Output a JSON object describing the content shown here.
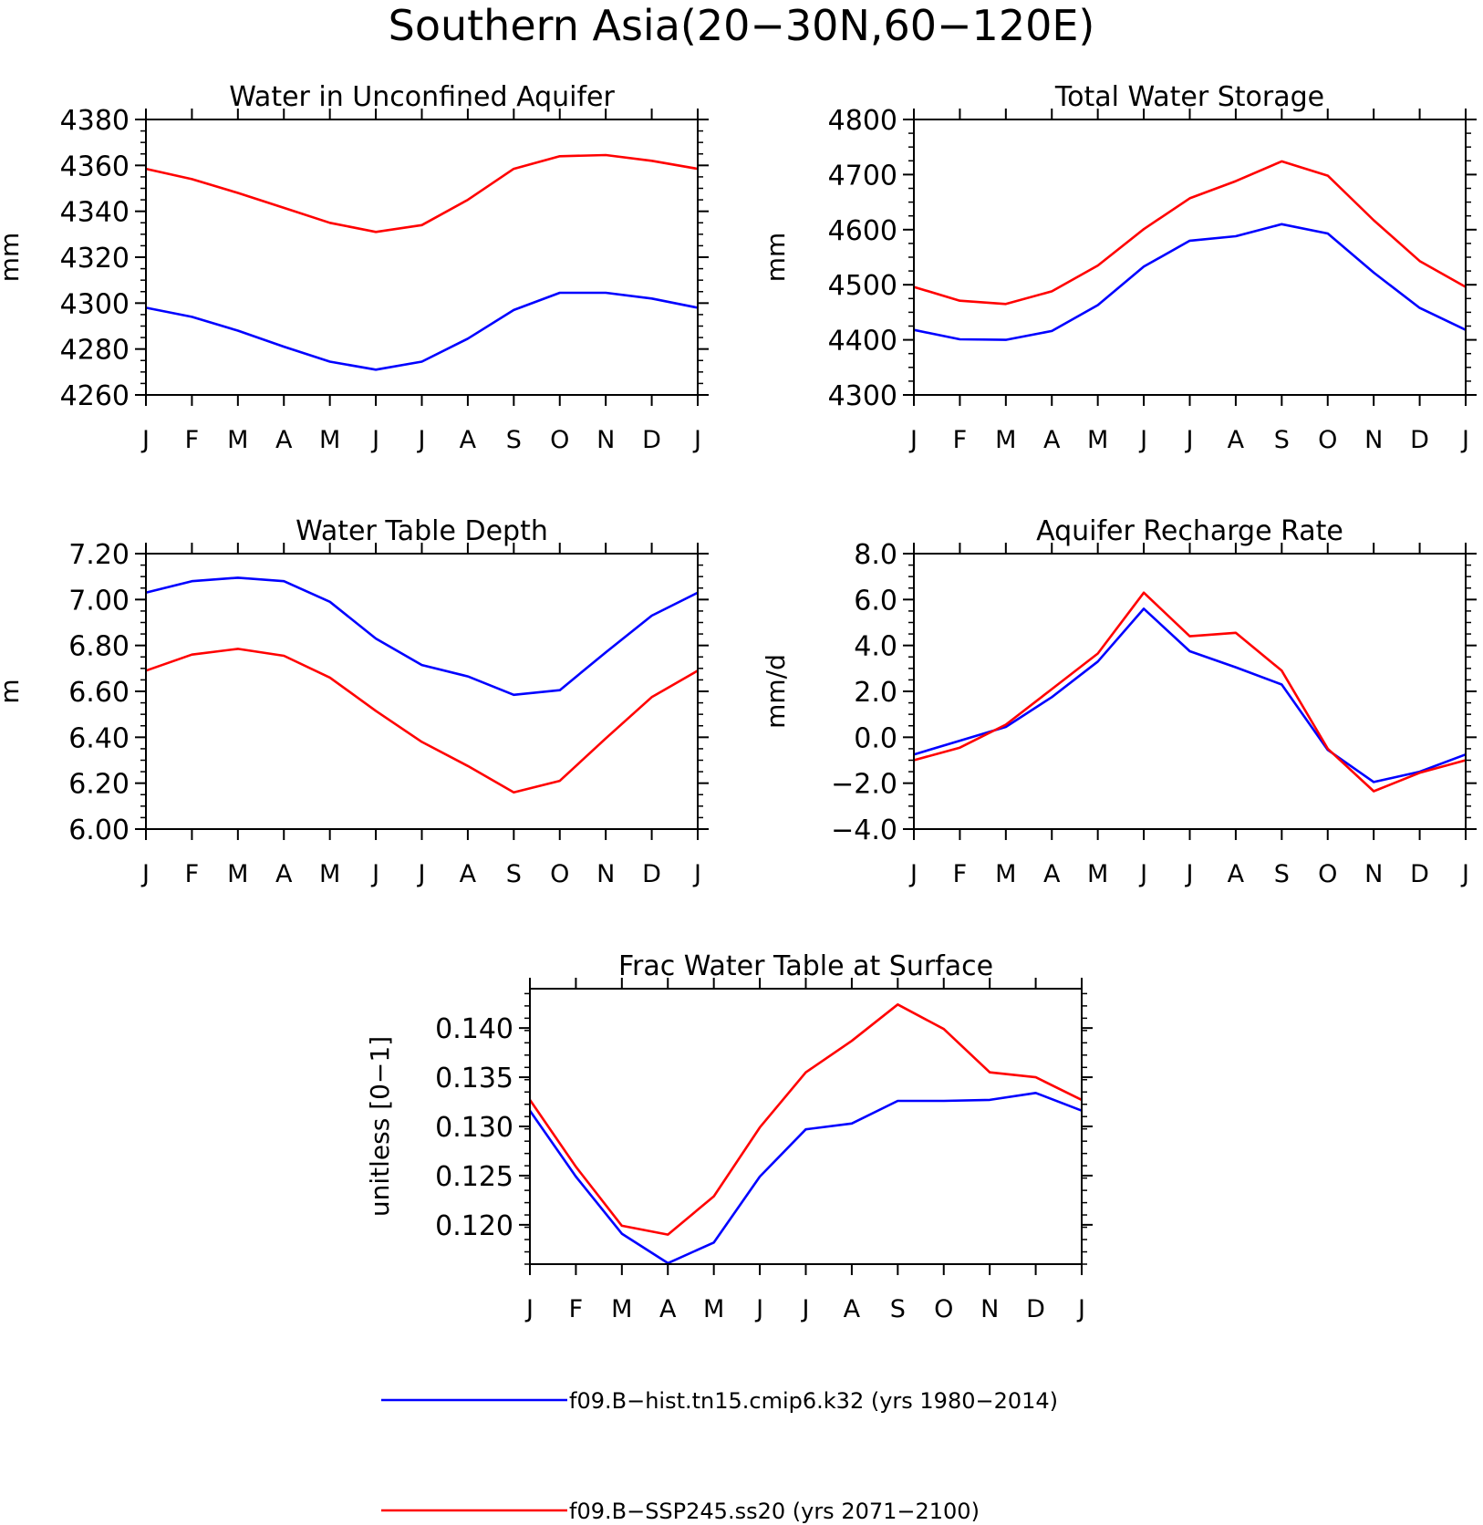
{
  "title": "Southern Asia(20−30N,60−120E)",
  "legend": {
    "placement": "bottom",
    "entries": [
      {
        "label": "f09.B−hist.tn15.cmip6.k32 (yrs 1980−2014)",
        "color": "#0000ff"
      },
      {
        "label": "f09.B−SSP245.ss20 (yrs 2071−2100)",
        "color": "#ff0000"
      }
    ]
  },
  "chart_data": [
    {
      "type": "line",
      "title": "Water in Unconfined Aquifer",
      "ylabel": "mm",
      "categories": [
        "J",
        "F",
        "M",
        "A",
        "M",
        "J",
        "J",
        "A",
        "S",
        "O",
        "N",
        "D",
        "J"
      ],
      "ylim": [
        4260,
        4380
      ],
      "yticks": [
        4260,
        4280,
        4300,
        4320,
        4340,
        4360,
        4380
      ],
      "ytick_labels": [
        "4260",
        "4280",
        "4300",
        "4320",
        "4340",
        "4360",
        "4380"
      ],
      "series": [
        {
          "name": "f09.B−hist.tn15.cmip6.k32 (yrs 1980−2014)",
          "color": "#0000ff",
          "values": [
            4298,
            4294,
            4288,
            4281,
            4274.5,
            4271,
            4274.5,
            4284.5,
            4297,
            4304.5,
            4304.5,
            4302,
            4298
          ]
        },
        {
          "name": "f09.B−SSP245.ss20 (yrs 2071−2100)",
          "color": "#ff0000",
          "values": [
            4358.5,
            4354,
            4348,
            4341.5,
            4335,
            4331,
            4334,
            4345,
            4358.5,
            4364,
            4364.5,
            4362,
            4358.5
          ]
        }
      ]
    },
    {
      "type": "line",
      "title": "Total Water Storage",
      "ylabel": "mm",
      "categories": [
        "J",
        "F",
        "M",
        "A",
        "M",
        "J",
        "J",
        "A",
        "S",
        "O",
        "N",
        "D",
        "J"
      ],
      "ylim": [
        4300,
        4800
      ],
      "yticks": [
        4300,
        4400,
        4500,
        4600,
        4700,
        4800
      ],
      "ytick_labels": [
        "4300",
        "4400",
        "4500",
        "4600",
        "4700",
        "4800"
      ],
      "series": [
        {
          "name": "f09.B−hist.tn15.cmip6.k32 (yrs 1980−2014)",
          "color": "#0000ff",
          "values": [
            4418,
            4401,
            4400,
            4416,
            4463,
            4533,
            4580,
            4588,
            4610,
            4593,
            4522,
            4458,
            4418
          ]
        },
        {
          "name": "f09.B−SSP245.ss20 (yrs 2071−2100)",
          "color": "#ff0000",
          "values": [
            4496,
            4471,
            4465,
            4488,
            4535,
            4601,
            4657,
            4688,
            4724,
            4698,
            4617,
            4543,
            4496
          ]
        }
      ]
    },
    {
      "type": "line",
      "title": "Water Table Depth",
      "ylabel": "m",
      "categories": [
        "J",
        "F",
        "M",
        "A",
        "M",
        "J",
        "J",
        "A",
        "S",
        "O",
        "N",
        "D",
        "J"
      ],
      "ylim": [
        6.0,
        7.2
      ],
      "yticks": [
        6.0,
        6.2,
        6.4,
        6.6,
        6.8,
        7.0,
        7.2
      ],
      "ytick_labels": [
        "6.00",
        "6.20",
        "6.40",
        "6.60",
        "6.80",
        "7.00",
        "7.20"
      ],
      "series": [
        {
          "name": "f09.B−hist.tn15.cmip6.k32 (yrs 1980−2014)",
          "color": "#0000ff",
          "values": [
            7.03,
            7.08,
            7.095,
            7.08,
            6.99,
            6.83,
            6.715,
            6.665,
            6.585,
            6.605,
            6.77,
            6.93,
            7.03
          ]
        },
        {
          "name": "f09.B−SSP245.ss20 (yrs 2071−2100)",
          "color": "#ff0000",
          "values": [
            6.69,
            6.76,
            6.785,
            6.755,
            6.66,
            6.515,
            6.38,
            6.275,
            6.16,
            6.21,
            6.395,
            6.575,
            6.69
          ]
        }
      ]
    },
    {
      "type": "line",
      "title": "Aquifer Recharge Rate",
      "ylabel": "mm/d",
      "categories": [
        "J",
        "F",
        "M",
        "A",
        "M",
        "J",
        "J",
        "A",
        "S",
        "O",
        "N",
        "D",
        "J"
      ],
      "ylim": [
        -4.0,
        8.0
      ],
      "yticks": [
        -4,
        -2,
        0,
        2,
        4,
        6,
        8
      ],
      "ytick_labels": [
        "−4.0",
        "−2.0",
        "0.0",
        "2.0",
        "4.0",
        "6.0",
        "8.0"
      ],
      "series": [
        {
          "name": "f09.B−hist.tn15.cmip6.k32 (yrs 1980−2014)",
          "color": "#0000ff",
          "values": [
            -0.75,
            -0.15,
            0.45,
            1.75,
            3.3,
            5.6,
            3.75,
            3.05,
            2.3,
            -0.55,
            -1.95,
            -1.5,
            -0.75
          ]
        },
        {
          "name": "f09.B−SSP245.ss20 (yrs 2071−2100)",
          "color": "#ff0000",
          "values": [
            -1.0,
            -0.45,
            0.55,
            2.1,
            3.65,
            6.3,
            4.4,
            4.55,
            2.9,
            -0.5,
            -2.35,
            -1.55,
            -1.0
          ]
        }
      ]
    },
    {
      "type": "line",
      "title": "Frac Water Table at Surface",
      "ylabel": "unitless [0−1]",
      "categories": [
        "J",
        "F",
        "M",
        "A",
        "M",
        "J",
        "J",
        "A",
        "S",
        "O",
        "N",
        "D",
        "J"
      ],
      "ylim": [
        0.116,
        0.144
      ],
      "yticks": [
        0.12,
        0.125,
        0.13,
        0.135,
        0.14
      ],
      "ytick_labels": [
        "0.120",
        "0.125",
        "0.130",
        "0.135",
        "0.140"
      ],
      "series": [
        {
          "name": "f09.B−hist.tn15.cmip6.k32 (yrs 1980−2014)",
          "color": "#0000ff",
          "values": [
            0.1316,
            0.1249,
            0.1191,
            0.1161,
            0.1182,
            0.1249,
            0.1297,
            0.1303,
            0.1326,
            0.1326,
            0.1327,
            0.1334,
            0.1316
          ]
        },
        {
          "name": "f09.B−SSP245.ss20 (yrs 2071−2100)",
          "color": "#ff0000",
          "values": [
            0.1327,
            0.1259,
            0.1199,
            0.119,
            0.1229,
            0.1299,
            0.1355,
            0.1387,
            0.1424,
            0.1399,
            0.1355,
            0.135,
            0.1327
          ]
        }
      ]
    }
  ]
}
